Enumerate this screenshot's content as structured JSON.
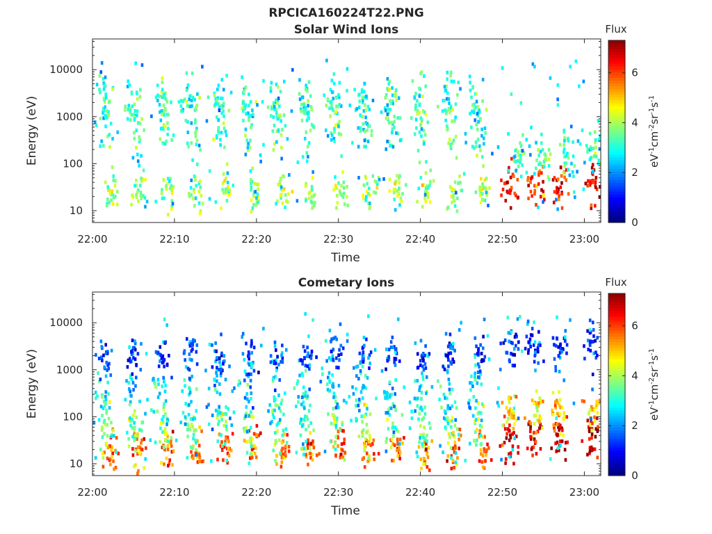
{
  "figure_title": "RPCICA160224T22.PNG",
  "colorbar_title": "Flux",
  "colorbar_label_parts": [
    "eV",
    "-1",
    "cm",
    "-2",
    "sr",
    "-1",
    "s",
    "-1"
  ],
  "colors": {
    "axis": "#262626",
    "colormap": [
      "#00007f",
      "#0000ff",
      "#007fff",
      "#00ffff",
      "#7fff7f",
      "#ffff00",
      "#ff7f00",
      "#ff0000",
      "#7f0000"
    ]
  },
  "chart_data": [
    {
      "type": "heatmap",
      "title": "Solar Wind Ions",
      "xlabel": "Time",
      "ylabel": "Energy (eV)",
      "x_range": [
        "22:00",
        "23:02"
      ],
      "x_ticks": [
        "22:00",
        "22:10",
        "22:20",
        "22:30",
        "22:40",
        "22:50",
        "23:00"
      ],
      "y_scale": "log",
      "y_range": [
        5.6,
        45000
      ],
      "y_ticks": [
        10,
        100,
        1000,
        10000
      ],
      "y_tick_labels": [
        "10",
        "100",
        "1000",
        "10000"
      ],
      "colorbar": {
        "range": [
          0,
          7.3
        ],
        "ticks": [
          0,
          2,
          4,
          6
        ]
      },
      "sweep_start_minutes": [
        1,
        4.5,
        8,
        11.5,
        15,
        18.5,
        22,
        25.5,
        29,
        32.5,
        36,
        39.5,
        43,
        46.5
      ],
      "clusters": [
        {
          "time_offset_min": 0.3,
          "energy_eV": 2200,
          "flux": 3.0,
          "spread": 0.25
        },
        {
          "time_offset_min": 0.8,
          "energy_eV": 600,
          "flux": 3.3,
          "spread": 0.35
        },
        {
          "time_offset_min": 1.2,
          "energy_eV": 25,
          "flux": 3.8,
          "spread": 0.2
        }
      ],
      "late_features": [
        {
          "time": "22:51",
          "energy_eV": 35,
          "flux": 6.2
        },
        {
          "time": "22:54",
          "energy_eV": 35,
          "flux": 6.0
        },
        {
          "time": "22:57",
          "energy_eV": 35,
          "flux": 6.4
        },
        {
          "time": "23:01",
          "energy_eV": 35,
          "flux": 6.5
        },
        {
          "time": "22:52",
          "energy_eV": 150,
          "flux": 3.2
        },
        {
          "time": "22:55",
          "energy_eV": 150,
          "flux": 3.2
        },
        {
          "time": "22:58",
          "energy_eV": 150,
          "flux": 3.2
        },
        {
          "time": "23:01",
          "energy_eV": 150,
          "flux": 3.2
        }
      ]
    },
    {
      "type": "heatmap",
      "title": "Cometary Ions",
      "xlabel": "Time",
      "ylabel": "Energy (eV)",
      "x_range": [
        "22:00",
        "23:02"
      ],
      "x_ticks": [
        "22:00",
        "22:10",
        "22:20",
        "22:30",
        "22:40",
        "22:50",
        "23:00"
      ],
      "y_scale": "log",
      "y_range": [
        5.6,
        45000
      ],
      "y_ticks": [
        10,
        100,
        1000,
        10000
      ],
      "y_tick_labels": [
        "10",
        "100",
        "1000",
        "10000"
      ],
      "colorbar": {
        "range": [
          0,
          7.3
        ],
        "ticks": [
          0,
          2,
          4,
          6
        ]
      },
      "sweep_start_minutes": [
        1.5,
        5,
        8.5,
        12,
        15.5,
        19,
        22.5,
        26,
        29.5,
        33,
        36.5,
        40,
        43.5,
        47
      ],
      "clusters": [
        {
          "time_offset_min": 0.7,
          "energy_eV": 20,
          "flux": 5.6,
          "spread": 0.2
        },
        {
          "time_offset_min": 0.2,
          "energy_eV": 60,
          "flux": 3.6,
          "spread": 0.3
        },
        {
          "time_offset_min": -0.3,
          "energy_eV": 300,
          "flux": 2.6,
          "spread": 0.35
        },
        {
          "time_offset_min": 0.1,
          "energy_eV": 2000,
          "flux": 1.4,
          "spread": 0.2
        }
      ],
      "late_features": [
        {
          "time": "22:51",
          "energy_eV": 35,
          "flux": 6.8
        },
        {
          "time": "22:54",
          "energy_eV": 35,
          "flux": 6.6
        },
        {
          "time": "22:57",
          "energy_eV": 35,
          "flux": 6.9
        },
        {
          "time": "23:01",
          "energy_eV": 35,
          "flux": 6.8
        },
        {
          "time": "22:51",
          "energy_eV": 120,
          "flux": 4.9
        },
        {
          "time": "22:54",
          "energy_eV": 120,
          "flux": 4.9
        },
        {
          "time": "22:57",
          "energy_eV": 120,
          "flux": 4.9
        },
        {
          "time": "23:01",
          "energy_eV": 120,
          "flux": 4.9
        },
        {
          "time": "22:51",
          "energy_eV": 3000,
          "flux": 1.3
        },
        {
          "time": "22:54",
          "energy_eV": 3000,
          "flux": 1.3
        },
        {
          "time": "22:57",
          "energy_eV": 3000,
          "flux": 1.3
        },
        {
          "time": "23:01",
          "energy_eV": 3000,
          "flux": 1.3
        }
      ]
    }
  ]
}
